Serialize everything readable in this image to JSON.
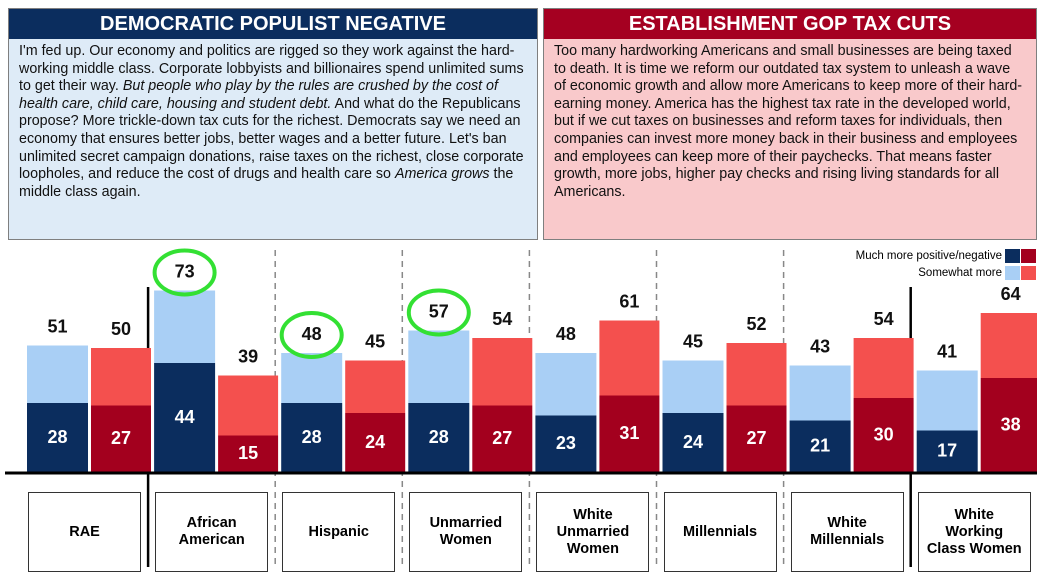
{
  "chart_data": {
    "type": "stacked_bar",
    "panels": [
      {
        "title": "DEMOCRATIC POPULIST NEGATIVE",
        "color": "#0b2d5e",
        "background": "#deebf7",
        "body": [
          {
            "text": "I'm fed up. Our economy and politics are rigged so they work against the hard-working middle class. Corporate lobbyists and billionaires spend unlimited sums to get their way. ",
            "italic": false
          },
          {
            "text": "But people who play by the rules are crushed by the cost of health care, child care, housing and student debt.",
            "italic": true
          },
          {
            "text": " And what do the Republicans propose? More trickle-down tax cuts for the richest. Democrats say we need an economy that ensures better jobs, better wages and a better future. Let's ban unlimited secret campaign donations, raise taxes on the richest, close corporate loopholes, and reduce the cost of drugs and health care so ",
            "italic": false
          },
          {
            "text": "America grows",
            "italic": true
          },
          {
            "text": " the middle class again.",
            "italic": false
          }
        ]
      },
      {
        "title": "ESTABLISHMENT GOP TAX CUTS",
        "color": "#a50021",
        "background": "#f9c9cb",
        "body": [
          {
            "text": "Too many hardworking Americans and small businesses are being taxed to death. It is time we reform our outdated tax system to unleash a wave of economic growth and allow more Americans to keep more of their hard-earning money. America has the highest tax rate in the developed world, but if we cut taxes on businesses and reform taxes for individuals, then companies can invest more money back in their business and employees and employees can keep more of their paychecks. That means faster growth, more jobs, higher pay checks and rising living standards for all Americans.",
            "italic": false
          }
        ]
      }
    ],
    "legend": {
      "much": "Much more positive/negative",
      "somewhat": "Somewhat more"
    },
    "categories": [
      "RAE",
      "African American",
      "Hispanic",
      "Unmarried Women",
      "White Unmarried Women",
      "Millennials",
      "White Millennials",
      "White Working Class Women"
    ],
    "groups": [
      {
        "much": {
          "color": "#0b2d5e",
          "values": [
            28,
            44,
            28,
            28,
            23,
            24,
            21,
            17
          ]
        },
        "somewhat": {
          "color": "#a9cff5",
          "values": [
            23,
            29,
            20,
            29,
            25,
            21,
            22,
            24
          ]
        },
        "totals": [
          51,
          73,
          48,
          57,
          48,
          45,
          43,
          41
        ],
        "highlight": [
          1,
          2,
          3
        ],
        "highlight_color": "#33e033"
      },
      {
        "much": {
          "color": "#a3001e",
          "values": [
            27,
            15,
            24,
            27,
            31,
            27,
            30,
            38
          ]
        },
        "somewhat": {
          "color": "#f4504e",
          "values": [
            23,
            24,
            21,
            27,
            30,
            25,
            24,
            26
          ]
        },
        "totals": [
          50,
          39,
          45,
          54,
          61,
          52,
          54,
          64
        ],
        "highlight": [],
        "highlight_color": "#33e033"
      }
    ],
    "ylim": [
      0,
      75
    ]
  }
}
